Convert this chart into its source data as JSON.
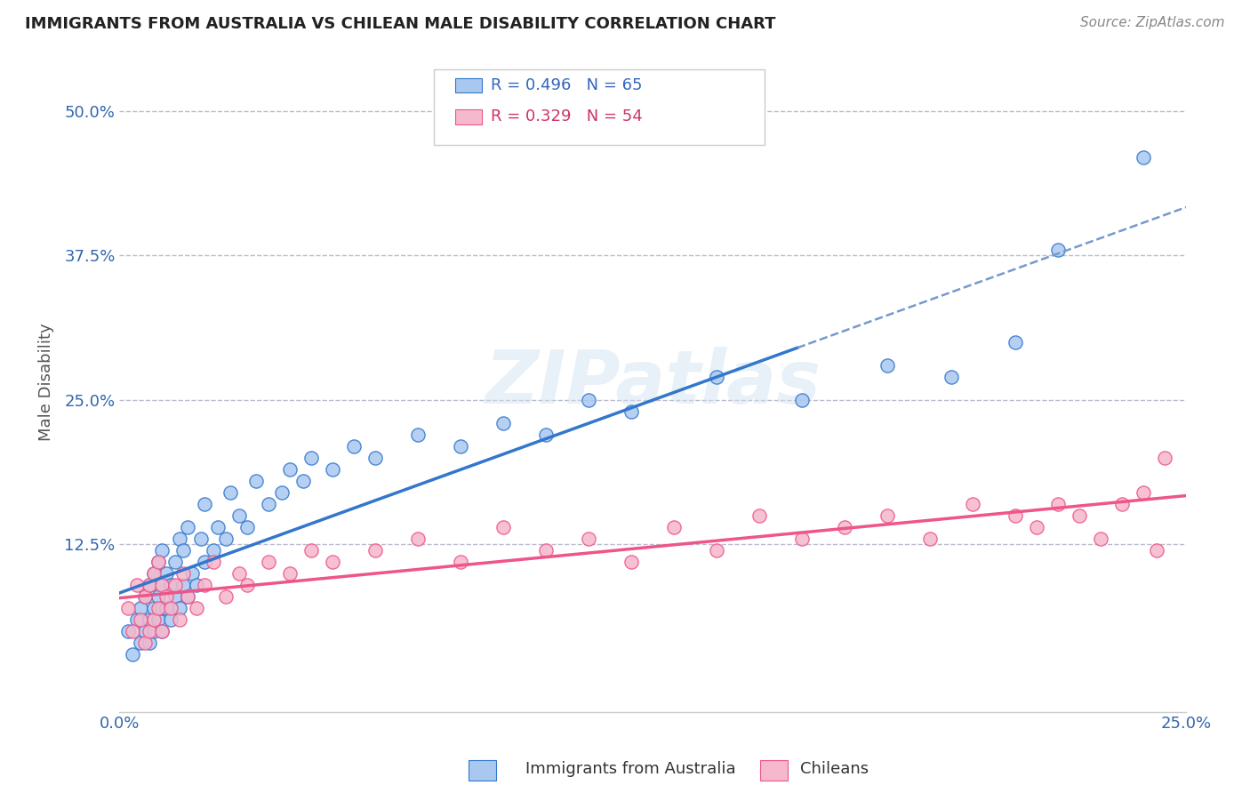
{
  "title": "IMMIGRANTS FROM AUSTRALIA VS CHILEAN MALE DISABILITY CORRELATION CHART",
  "source": "Source: ZipAtlas.com",
  "ylabel": "Male Disability",
  "xlabel": "",
  "xlim": [
    0.0,
    0.25
  ],
  "ylim": [
    -0.02,
    0.55
  ],
  "x_ticks": [
    0.0,
    0.25
  ],
  "x_tick_labels": [
    "0.0%",
    "25.0%"
  ],
  "y_ticks": [
    0.125,
    0.25,
    0.375,
    0.5
  ],
  "y_tick_labels": [
    "12.5%",
    "25.0%",
    "37.5%",
    "50.0%"
  ],
  "blue_color": "#a8c8f0",
  "pink_color": "#f5b8cc",
  "blue_line_color": "#3377cc",
  "pink_line_color": "#ee5588",
  "blue_dash_color": "#7799cc",
  "watermark": "ZIPatlas",
  "legend_labels": [
    "Immigrants from Australia",
    "Chileans"
  ],
  "blue_R": "0.496",
  "blue_N": "65",
  "pink_R": "0.329",
  "pink_N": "54",
  "blue_scatter_x": [
    0.002,
    0.003,
    0.004,
    0.005,
    0.005,
    0.006,
    0.006,
    0.007,
    0.007,
    0.007,
    0.008,
    0.008,
    0.008,
    0.009,
    0.009,
    0.009,
    0.01,
    0.01,
    0.01,
    0.01,
    0.011,
    0.011,
    0.012,
    0.012,
    0.013,
    0.013,
    0.014,
    0.014,
    0.015,
    0.015,
    0.016,
    0.016,
    0.017,
    0.018,
    0.019,
    0.02,
    0.02,
    0.022,
    0.023,
    0.025,
    0.026,
    0.028,
    0.03,
    0.032,
    0.035,
    0.038,
    0.04,
    0.043,
    0.045,
    0.05,
    0.055,
    0.06,
    0.07,
    0.08,
    0.09,
    0.1,
    0.11,
    0.12,
    0.14,
    0.16,
    0.18,
    0.195,
    0.21,
    0.22,
    0.24
  ],
  "blue_scatter_y": [
    0.05,
    0.03,
    0.06,
    0.04,
    0.07,
    0.05,
    0.08,
    0.04,
    0.06,
    0.09,
    0.05,
    0.07,
    0.1,
    0.06,
    0.08,
    0.11,
    0.05,
    0.07,
    0.09,
    0.12,
    0.07,
    0.1,
    0.06,
    0.09,
    0.08,
    0.11,
    0.07,
    0.13,
    0.09,
    0.12,
    0.08,
    0.14,
    0.1,
    0.09,
    0.13,
    0.11,
    0.16,
    0.12,
    0.14,
    0.13,
    0.17,
    0.15,
    0.14,
    0.18,
    0.16,
    0.17,
    0.19,
    0.18,
    0.2,
    0.19,
    0.21,
    0.2,
    0.22,
    0.21,
    0.23,
    0.22,
    0.25,
    0.24,
    0.27,
    0.25,
    0.28,
    0.27,
    0.3,
    0.38,
    0.46
  ],
  "pink_scatter_x": [
    0.002,
    0.003,
    0.004,
    0.005,
    0.006,
    0.006,
    0.007,
    0.007,
    0.008,
    0.008,
    0.009,
    0.009,
    0.01,
    0.01,
    0.011,
    0.012,
    0.013,
    0.014,
    0.015,
    0.016,
    0.018,
    0.02,
    0.022,
    0.025,
    0.028,
    0.03,
    0.035,
    0.04,
    0.045,
    0.05,
    0.06,
    0.07,
    0.08,
    0.09,
    0.1,
    0.11,
    0.12,
    0.13,
    0.14,
    0.15,
    0.16,
    0.17,
    0.18,
    0.19,
    0.2,
    0.21,
    0.215,
    0.22,
    0.225,
    0.23,
    0.235,
    0.24,
    0.243,
    0.245
  ],
  "pink_scatter_y": [
    0.07,
    0.05,
    0.09,
    0.06,
    0.04,
    0.08,
    0.05,
    0.09,
    0.06,
    0.1,
    0.07,
    0.11,
    0.05,
    0.09,
    0.08,
    0.07,
    0.09,
    0.06,
    0.1,
    0.08,
    0.07,
    0.09,
    0.11,
    0.08,
    0.1,
    0.09,
    0.11,
    0.1,
    0.12,
    0.11,
    0.12,
    0.13,
    0.11,
    0.14,
    0.12,
    0.13,
    0.11,
    0.14,
    0.12,
    0.15,
    0.13,
    0.14,
    0.15,
    0.13,
    0.16,
    0.15,
    0.14,
    0.16,
    0.15,
    0.13,
    0.16,
    0.17,
    0.12,
    0.2
  ]
}
